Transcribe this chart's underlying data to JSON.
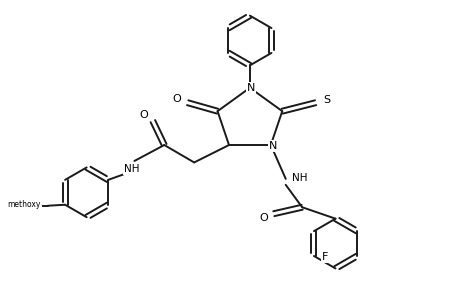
{
  "background_color": "#ffffff",
  "line_color": "#1a1a1a",
  "line_width": 1.4,
  "figsize": [
    4.6,
    3.0
  ],
  "dpi": 100,
  "xlim": [
    0,
    9.2
  ],
  "ylim": [
    0,
    6.0
  ]
}
